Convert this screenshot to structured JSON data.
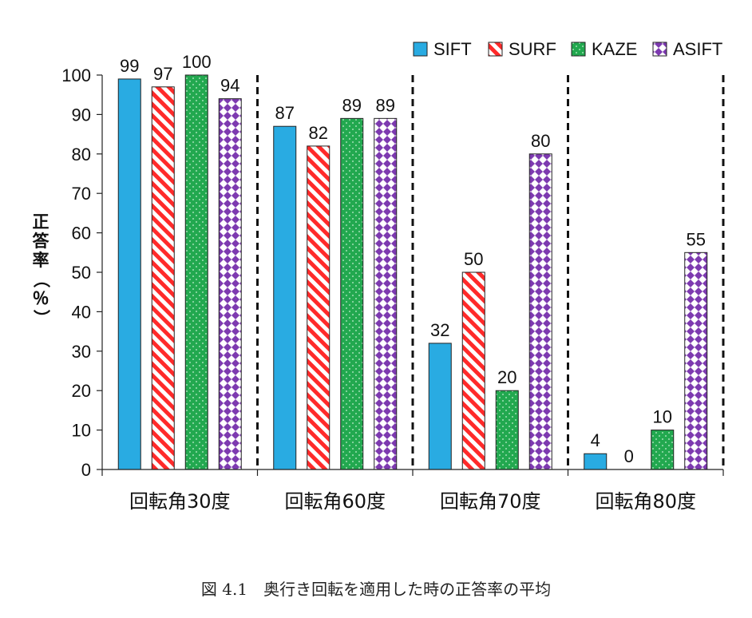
{
  "chart_data": {
    "type": "bar",
    "categories": [
      "回転角30度",
      "回転角60度",
      "回転角70度",
      "回転角80度"
    ],
    "series": [
      {
        "name": "SIFT",
        "values": [
          99,
          87,
          32,
          4
        ],
        "color": "#29abe2",
        "pattern": "solid"
      },
      {
        "name": "SURF",
        "values": [
          97,
          82,
          50,
          0
        ],
        "color": "#ff2a2a",
        "pattern": "diagonal-stripes"
      },
      {
        "name": "KAZE",
        "values": [
          100,
          89,
          20,
          10
        ],
        "color": "#22a84f",
        "pattern": "dots"
      },
      {
        "name": "ASIFT",
        "values": [
          94,
          89,
          80,
          55
        ],
        "color": "#7d3ab0",
        "pattern": "checker-diamonds"
      }
    ],
    "ylabel": "正答率（％）",
    "ylim": [
      0,
      100
    ],
    "yticks": [
      0,
      10,
      20,
      30,
      40,
      50,
      60,
      70,
      80,
      90,
      100
    ],
    "legend": "top-right",
    "data_labels": true,
    "group_separators": "dashed"
  },
  "caption": "図 4.1　奥行き回転を適用した時の正答率の平均"
}
